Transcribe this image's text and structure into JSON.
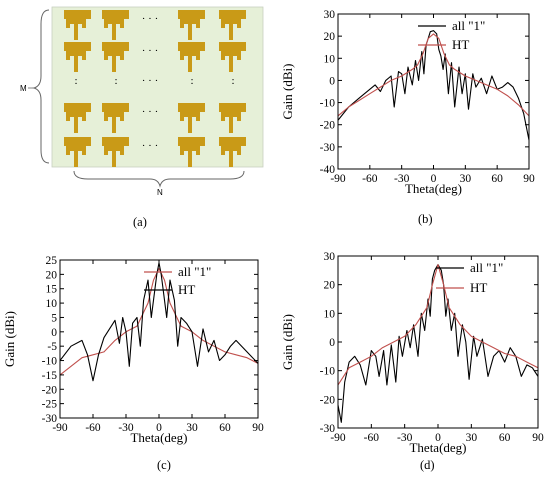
{
  "colors": {
    "black": "#000000",
    "red": "#c0504d",
    "panel_bg": "#e6f0d8",
    "element": "#c99a17"
  },
  "panel_a": {
    "caption": "(a)",
    "row_label": "M",
    "col_label": "N",
    "ellipsis_h": "· · ·",
    "ellipsis_v": ":",
    "element_icon": "tee-patch-antenna-icon"
  },
  "chart_data": [
    {
      "id": "b",
      "type": "line",
      "caption": "(b)",
      "xlabel": "Theta(deg)",
      "ylabel": "Gain (dBi)",
      "xlim": [
        -90,
        90
      ],
      "ylim": [
        -40,
        30
      ],
      "xticks": [
        -90,
        -60,
        -30,
        0,
        30,
        60,
        90
      ],
      "yticks": [
        -40,
        -30,
        -20,
        -10,
        0,
        10,
        20,
        30
      ],
      "legend_position": "top-right",
      "series": [
        {
          "name": "all \"1\"",
          "color": "#000000",
          "x": [
            -90,
            -80,
            -70,
            -60,
            -55,
            -50,
            -45,
            -40,
            -37,
            -33,
            -30,
            -27,
            -24,
            -20,
            -17,
            -14,
            -11,
            -9,
            -7,
            -5,
            -3,
            0,
            3,
            5,
            7,
            9,
            11,
            14,
            17,
            20,
            24,
            27,
            30,
            33,
            37,
            40,
            45,
            50,
            55,
            60,
            65,
            70,
            75,
            80,
            85,
            90
          ],
          "y": [
            -18,
            -12,
            -8,
            -4,
            -2,
            -5,
            0,
            2,
            -12,
            4,
            3,
            -6,
            6,
            -2,
            9,
            0,
            13,
            3,
            16,
            19,
            22,
            22.5,
            21,
            14,
            11,
            5,
            12,
            -6,
            8,
            -12,
            6,
            -6,
            3,
            -13,
            3,
            -3,
            1,
            -6,
            2,
            -4,
            -3,
            -1,
            -3,
            -8,
            -15,
            -27
          ]
        },
        {
          "name": "HT",
          "color": "#c0504d",
          "x": [
            -90,
            -80,
            -70,
            -60,
            -50,
            -40,
            -30,
            -20,
            -15,
            -10,
            -5,
            0,
            5,
            10,
            15,
            20,
            30,
            40,
            50,
            60,
            70,
            80,
            90
          ],
          "y": [
            -16,
            -12,
            -9,
            -6,
            -3,
            0,
            2,
            5,
            7,
            12,
            19,
            21,
            19,
            12,
            7,
            5,
            2,
            0,
            -2,
            -4,
            -7,
            -11,
            -16
          ]
        }
      ]
    },
    {
      "id": "c",
      "type": "line",
      "caption": "(c)",
      "xlabel": "Theta(deg)",
      "ylabel": "Gain (dBi)",
      "xlim": [
        -90,
        90
      ],
      "ylim": [
        -30,
        25
      ],
      "xticks": [
        -90,
        -60,
        -30,
        0,
        30,
        60,
        90
      ],
      "yticks": [
        -30,
        -25,
        -20,
        -15,
        -10,
        -5,
        0,
        5,
        10,
        15,
        20,
        25
      ],
      "legend_position": "top-right",
      "series": [
        {
          "name": "all \"1\"",
          "color": "#c0504d",
          "x": [
            -90,
            -80,
            -70,
            -60,
            -50,
            -40,
            -30,
            -20,
            -10,
            -5,
            0,
            5,
            10,
            20,
            30,
            40,
            50,
            60,
            70,
            80,
            90
          ],
          "y": [
            -15,
            -12,
            -9,
            -8,
            -7,
            -3,
            0,
            2,
            10,
            18,
            22,
            18,
            10,
            2,
            0,
            -3,
            -5,
            -7,
            -8,
            -9,
            -11
          ]
        },
        {
          "name": "HT",
          "color": "#000000",
          "x": [
            -90,
            -80,
            -70,
            -65,
            -60,
            -55,
            -50,
            -45,
            -40,
            -36,
            -33,
            -30,
            -27,
            -24,
            -20,
            -17,
            -14,
            -10,
            -7,
            -4,
            -2,
            0,
            2,
            4,
            7,
            10,
            14,
            17,
            20,
            25,
            30,
            35,
            40,
            45,
            50,
            55,
            60,
            65,
            70,
            80,
            90
          ],
          "y": [
            -10,
            -5,
            -3,
            -8,
            -17,
            -8,
            -2,
            1,
            4,
            -4,
            5,
            0,
            -12,
            3,
            5,
            -5,
            11,
            18,
            5,
            14,
            20,
            24,
            20,
            14,
            5,
            18,
            11,
            -5,
            5,
            3,
            0,
            -12,
            1,
            -7,
            -3,
            -10,
            -8,
            -5,
            -3,
            -7,
            -11
          ]
        }
      ]
    },
    {
      "id": "d",
      "type": "line",
      "caption": "(d)",
      "xlabel": "Theta(deg)",
      "ylabel": "Gain (dBi)",
      "xlim": [
        -90,
        90
      ],
      "ylim": [
        -30,
        30
      ],
      "xticks": [
        -90,
        -60,
        -30,
        0,
        30,
        60,
        90
      ],
      "yticks": [
        -30,
        -20,
        -10,
        0,
        10,
        20,
        30
      ],
      "legend_position": "top-right",
      "series": [
        {
          "name": "all \"1\"",
          "color": "#000000",
          "x": [
            -90,
            -87,
            -84,
            -80,
            -75,
            -70,
            -65,
            -60,
            -56,
            -53,
            -49,
            -46,
            -42,
            -38,
            -35,
            -32,
            -28,
            -25,
            -22,
            -18,
            -15,
            -12,
            -9,
            -7,
            -5,
            -3,
            0,
            3,
            5,
            7,
            9,
            12,
            15,
            18,
            22,
            25,
            28,
            32,
            35,
            40,
            45,
            50,
            55,
            60,
            65,
            70,
            75,
            80,
            85,
            90
          ],
          "y": [
            -22,
            -28,
            -14,
            -7,
            -5,
            -8,
            -15,
            -3,
            -5,
            -12,
            -3,
            -15,
            -1,
            -14,
            2,
            -5,
            4,
            -2,
            6,
            -5,
            10,
            4,
            15,
            9,
            22,
            25,
            27,
            25,
            20,
            9,
            15,
            4,
            10,
            -5,
            6,
            0,
            -13,
            2,
            -5,
            1,
            -12,
            -5,
            -3,
            -7,
            -2,
            -5,
            -12,
            -8,
            -9,
            -12
          ]
        },
        {
          "name": "HT",
          "color": "#c0504d",
          "x": [
            -90,
            -80,
            -70,
            -60,
            -50,
            -40,
            -30,
            -20,
            -10,
            -5,
            0,
            5,
            10,
            20,
            30,
            40,
            50,
            60,
            70,
            80,
            90
          ],
          "y": [
            -15,
            -9,
            -7,
            -5,
            -2,
            0,
            2,
            6,
            12,
            20,
            27,
            20,
            12,
            6,
            2,
            0,
            -2,
            -4,
            -5,
            -7,
            -9
          ]
        }
      ]
    }
  ]
}
